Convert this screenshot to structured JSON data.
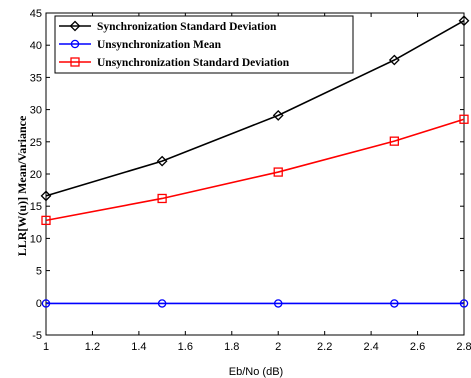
{
  "chart_data": {
    "type": "line",
    "xlabel": "Eb/No (dB)",
    "ylabel": "LLR[W(u)] Mean/Variance",
    "xlim": [
      1,
      2.8
    ],
    "ylim": [
      -5,
      45
    ],
    "xticks": [
      1,
      1.2,
      1.4,
      1.6,
      1.8,
      2,
      2.2,
      2.4,
      2.6,
      2.8
    ],
    "xtick_labels": [
      "1",
      "1.2",
      "1.4",
      "1.6",
      "1.8",
      "2",
      "2.2",
      "2.4",
      "2.6",
      "2.8"
    ],
    "yticks": [
      -5,
      0,
      5,
      10,
      15,
      20,
      25,
      30,
      35,
      40,
      45
    ],
    "ytick_labels": [
      "-5",
      "0",
      "5",
      "10",
      "15",
      "20",
      "25",
      "30",
      "35",
      "40",
      "45"
    ],
    "grid": true,
    "legend_position": "top-left",
    "x": [
      1,
      1.5,
      2,
      2.5,
      2.8
    ],
    "series": [
      {
        "name": "Synchronization Standard Deviation",
        "color": "#000000",
        "marker": "diamond",
        "values": [
          16.6,
          22.0,
          29.1,
          37.7,
          43.8
        ]
      },
      {
        "name": "Unsynchronization Mean",
        "color": "#0000ff",
        "marker": "circle",
        "values": [
          -0.1,
          -0.1,
          -0.1,
          -0.1,
          -0.1
        ]
      },
      {
        "name": "Unsynchronization Standard Deviation",
        "color": "#ff0000",
        "marker": "square",
        "values": [
          12.8,
          16.2,
          20.3,
          25.1,
          28.5
        ]
      }
    ]
  }
}
